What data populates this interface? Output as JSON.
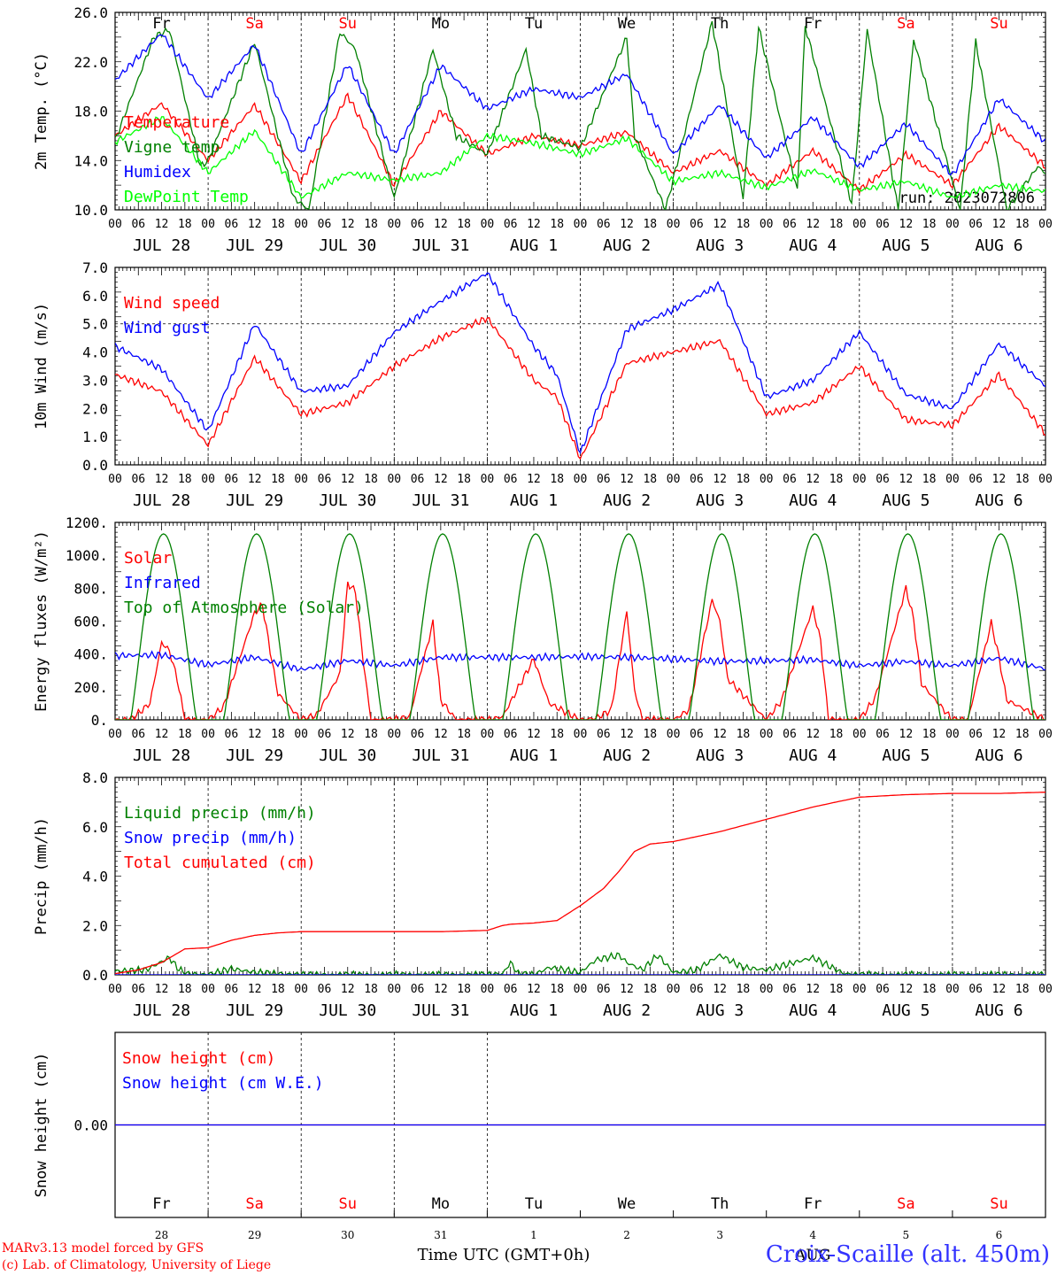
{
  "chart_data": [
    {
      "type": "line",
      "ylabel": "2m Temp. (°C)",
      "ylim": [
        10,
        26
      ],
      "yticks": [
        "10.0",
        "14.0",
        "18.0",
        "22.0",
        "26.0"
      ],
      "ytick_values": [
        10,
        14,
        18,
        22,
        26
      ],
      "hline": null,
      "weekday_row": [
        {
          "label": "Fr",
          "color": "#000000"
        },
        {
          "label": "Sa",
          "color": "#ff0000"
        },
        {
          "label": "Su",
          "color": "#ff0000"
        },
        {
          "label": "Mo",
          "color": "#000000"
        },
        {
          "label": "Tu",
          "color": "#000000"
        },
        {
          "label": "We",
          "color": "#000000"
        },
        {
          "label": "Th",
          "color": "#000000"
        },
        {
          "label": "Fr",
          "color": "#000000"
        },
        {
          "label": "Sa",
          "color": "#ff0000"
        },
        {
          "label": "Su",
          "color": "#ff0000"
        }
      ],
      "annotation": "run: 2023072806",
      "series": [
        {
          "name": "Temperature",
          "color": "#ff0000",
          "x": [
            0,
            12,
            24,
            36,
            48,
            60,
            72,
            84,
            96,
            108,
            120,
            132,
            144,
            156,
            168,
            180,
            192,
            204,
            216,
            228,
            240
          ],
          "y": [
            16.0,
            18.6,
            14.0,
            18.5,
            12.3,
            19.3,
            12.0,
            18.0,
            14.5,
            16.0,
            15.2,
            16.3,
            13.0,
            14.8,
            12.0,
            14.8,
            11.6,
            14.5,
            12.0,
            16.8,
            13.5
          ]
        },
        {
          "name": "Vigne temp",
          "color": "#008000",
          "x": [
            0,
            10,
            14,
            22,
            24,
            36,
            46,
            50,
            58,
            62,
            72,
            82,
            88,
            96,
            106,
            110,
            120,
            132,
            134,
            142,
            154,
            162,
            166,
            176,
            178,
            190,
            194,
            202,
            206,
            218,
            222,
            230,
            238,
            240
          ],
          "y": [
            15.6,
            24.0,
            24.6,
            13.5,
            14.0,
            23.6,
            11.0,
            10.0,
            24.4,
            23.0,
            11.0,
            23.0,
            16.0,
            14.5,
            23.0,
            16.0,
            15.0,
            24.0,
            16.0,
            10.0,
            25.2,
            11.0,
            24.8,
            11.5,
            24.9,
            10.5,
            24.6,
            10.0,
            23.8,
            10.0,
            23.6,
            10.0,
            13.5,
            13.0
          ]
        },
        {
          "name": "Humidex",
          "color": "#0000ff",
          "x": [
            0,
            12,
            24,
            36,
            48,
            60,
            72,
            84,
            96,
            108,
            120,
            132,
            144,
            156,
            168,
            180,
            192,
            204,
            216,
            228,
            240
          ],
          "y": [
            20.5,
            24.3,
            19.0,
            23.4,
            14.5,
            21.8,
            14.5,
            21.7,
            18.2,
            19.8,
            19.1,
            21.0,
            14.5,
            18.5,
            14.2,
            17.5,
            13.5,
            17.0,
            12.8,
            19.0,
            15.5
          ]
        },
        {
          "name": "DewPoint Temp",
          "color": "#00ff00",
          "x": [
            0,
            12,
            24,
            36,
            48,
            60,
            72,
            84,
            96,
            108,
            120,
            132,
            144,
            156,
            168,
            180,
            192,
            204,
            216,
            228,
            240
          ],
          "y": [
            15.5,
            17.5,
            13.0,
            16.4,
            11.0,
            13.0,
            12.4,
            13.0,
            16.0,
            15.4,
            14.5,
            15.8,
            12.3,
            13.0,
            11.8,
            13.2,
            11.6,
            12.3,
            11.0,
            12.0,
            11.5
          ]
        }
      ]
    },
    {
      "type": "line",
      "ylabel": "10m Wind (m/s)",
      "ylim": [
        0,
        7
      ],
      "yticks": [
        "0.0",
        "1.0",
        "2.0",
        "3.0",
        "4.0",
        "5.0",
        "6.0",
        "7.0"
      ],
      "ytick_values": [
        0,
        1,
        2,
        3,
        4,
        5,
        6,
        7
      ],
      "hline": 5.0,
      "weekday_row": null,
      "annotation": null,
      "series": [
        {
          "name": "Wind speed",
          "color": "#ff0000",
          "x": [
            0,
            12,
            24,
            36,
            48,
            60,
            72,
            84,
            96,
            108,
            114,
            120,
            132,
            144,
            156,
            168,
            180,
            192,
            204,
            216,
            228,
            240
          ],
          "y": [
            3.2,
            2.6,
            0.7,
            3.8,
            1.8,
            2.2,
            3.5,
            4.5,
            5.2,
            3.0,
            2.4,
            0.2,
            3.6,
            4.0,
            4.4,
            1.8,
            2.2,
            3.5,
            1.6,
            1.4,
            3.2,
            1.1
          ]
        },
        {
          "name": "Wind gust",
          "color": "#0000ff",
          "x": [
            0,
            12,
            24,
            36,
            48,
            60,
            72,
            84,
            96,
            108,
            114,
            120,
            132,
            144,
            156,
            168,
            180,
            192,
            204,
            216,
            228,
            240
          ],
          "y": [
            4.2,
            3.4,
            1.2,
            5.0,
            2.6,
            2.8,
            4.7,
            5.8,
            6.8,
            4.2,
            3.2,
            0.4,
            4.8,
            5.5,
            6.4,
            2.4,
            3.0,
            4.7,
            2.5,
            2.0,
            4.3,
            2.8
          ]
        }
      ]
    },
    {
      "type": "line",
      "ylabel": "Energy fluxes (W/m²)",
      "ylim": [
        0,
        1200
      ],
      "yticks": [
        "0.",
        "200.",
        "400.",
        "600.",
        "800.",
        "1000.",
        "1200."
      ],
      "ytick_values": [
        0,
        200,
        400,
        600,
        800,
        1000,
        1200
      ],
      "hline": null,
      "weekday_row": null,
      "annotation": null,
      "series": [
        {
          "name": "Solar",
          "color": "#ff0000",
          "x": [
            0,
            4,
            9,
            12,
            14,
            16,
            18,
            24,
            28,
            36,
            38,
            40,
            42,
            48,
            52,
            58,
            60,
            62,
            64,
            66,
            72,
            76,
            82,
            84,
            86,
            88,
            96,
            100,
            108,
            112,
            120,
            124,
            128,
            132,
            134,
            136,
            144,
            148,
            154,
            156,
            158,
            168,
            172,
            180,
            182,
            184,
            192,
            196,
            204,
            206,
            208,
            216,
            220,
            226,
            228,
            230,
            240
          ],
          "y": [
            0,
            0,
            100,
            470,
            420,
            250,
            0,
            0,
            80,
            650,
            700,
            420,
            160,
            0,
            30,
            280,
            830,
            780,
            360,
            0,
            0,
            20,
            590,
            120,
            60,
            0,
            0,
            20,
            370,
            100,
            0,
            10,
            60,
            660,
            180,
            0,
            0,
            60,
            730,
            600,
            250,
            0,
            120,
            680,
            480,
            0,
            0,
            130,
            800,
            610,
            220,
            0,
            0,
            590,
            380,
            120,
            0
          ]
        },
        {
          "name": "Infrared",
          "color": "#0000ff",
          "x": [
            0,
            12,
            24,
            36,
            48,
            60,
            72,
            84,
            96,
            108,
            120,
            132,
            144,
            156,
            168,
            180,
            192,
            204,
            216,
            228,
            240
          ],
          "y": [
            390,
            395,
            335,
            380,
            305,
            360,
            330,
            380,
            380,
            380,
            385,
            380,
            370,
            355,
            360,
            365,
            330,
            355,
            330,
            375,
            310
          ]
        },
        {
          "name": "Top of Atmosphere (Solar)",
          "color": "#008000",
          "daily_peak": 1130,
          "day_start_hour": 4,
          "day_end_hour": 21
        }
      ]
    },
    {
      "type": "line",
      "ylabel": "Precip (mm/h)",
      "ylim": [
        0,
        8
      ],
      "yticks": [
        "0.0",
        "2.0",
        "4.0",
        "6.0",
        "8.0"
      ],
      "ytick_values": [
        0,
        2,
        4,
        6,
        8
      ],
      "hline": null,
      "weekday_row": null,
      "annotation": null,
      "series": [
        {
          "name": "Liquid precip (mm/h)",
          "color": "#008000",
          "x": [
            0,
            8,
            14,
            16,
            18,
            24,
            30,
            36,
            42,
            48,
            96,
            100,
            102,
            104,
            108,
            112,
            120,
            124,
            130,
            132,
            136,
            140,
            144,
            150,
            156,
            162,
            168,
            180,
            188,
            192,
            240
          ],
          "y": [
            0.15,
            0.2,
            0.7,
            0.3,
            0.05,
            0,
            0.25,
            0.1,
            0.05,
            0,
            0,
            0.05,
            0.5,
            0.05,
            0,
            0.3,
            0.1,
            0.6,
            0.8,
            0.5,
            0.2,
            0.8,
            0.1,
            0.2,
            0.8,
            0.3,
            0.2,
            0.7,
            0.05,
            0,
            0
          ]
        },
        {
          "name": "Snow precip (mm/h)",
          "color": "#0000ff",
          "x": [
            0,
            240
          ],
          "y": [
            0,
            0
          ]
        },
        {
          "name": "Total cumulated (cm)",
          "color": "#ff0000",
          "x": [
            0,
            6,
            12,
            18,
            24,
            30,
            36,
            42,
            48,
            60,
            72,
            84,
            96,
            100,
            102,
            108,
            114,
            120,
            126,
            130,
            134,
            138,
            144,
            156,
            168,
            180,
            192,
            204,
            216,
            228,
            240
          ],
          "y": [
            0.05,
            0.2,
            0.5,
            1.05,
            1.1,
            1.4,
            1.6,
            1.7,
            1.75,
            1.75,
            1.75,
            1.75,
            1.8,
            2.0,
            2.05,
            2.1,
            2.2,
            2.8,
            3.5,
            4.2,
            5.0,
            5.3,
            5.4,
            5.8,
            6.3,
            6.8,
            7.2,
            7.3,
            7.35,
            7.35,
            7.4
          ]
        }
      ]
    },
    {
      "type": "line",
      "ylabel": "Snow height (cm)",
      "ylim": [
        -1,
        1
      ],
      "yticks": [
        "0.00"
      ],
      "ytick_values": [
        0
      ],
      "hline": null,
      "weekday_row": null,
      "annotation": null,
      "series": [
        {
          "name": "Snow height (cm)",
          "color": "#ff0000",
          "x": [
            0,
            240
          ],
          "y": [
            0,
            0
          ]
        },
        {
          "name": "Snow height (cm W.E.)",
          "color": "#0000ff",
          "x": [
            0,
            240
          ],
          "y": [
            0,
            0
          ]
        }
      ]
    }
  ],
  "time_axis": {
    "hour_labels": [
      "00",
      "06",
      "12",
      "18"
    ],
    "end_label": "00",
    "date_labels": [
      "JUL 28",
      "JUL 29",
      "JUL 30",
      "JUL 31",
      "AUG  1",
      "AUG  2",
      "AUG  3",
      "AUG  4",
      "AUG  5",
      "AUG  6"
    ]
  },
  "bottom_axis": {
    "weekdays": [
      {
        "label": "Fr",
        "color": "#000000"
      },
      {
        "label": "Sa",
        "color": "#ff0000"
      },
      {
        "label": "Su",
        "color": "#ff0000"
      },
      {
        "label": "Mo",
        "color": "#000000"
      },
      {
        "label": "Tu",
        "color": "#000000"
      },
      {
        "label": "We",
        "color": "#000000"
      },
      {
        "label": "Th",
        "color": "#000000"
      },
      {
        "label": "Fr",
        "color": "#000000"
      },
      {
        "label": "Sa",
        "color": "#ff0000"
      },
      {
        "label": "Su",
        "color": "#ff0000"
      }
    ],
    "day_numbers": [
      "28",
      "29",
      "30",
      "31",
      "1",
      "2",
      "3",
      "4",
      "5",
      "6"
    ],
    "month_label": "AUG",
    "xlabel": "Time UTC (GMT+0h)"
  },
  "footer": {
    "credit_line1": "MARv3.13 model forced by GFS",
    "credit_line2": "(c) Lab. of Climatology, University of Liege",
    "station": "Croix-Scaille (alt. 450m)"
  }
}
